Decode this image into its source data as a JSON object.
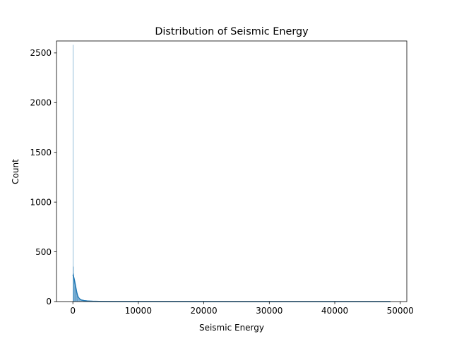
{
  "chart_data": {
    "type": "histogram",
    "title": "Distribution of Seismic Energy",
    "xlabel": "Seismic Energy",
    "ylabel": "Count",
    "xlim": [
      -2500,
      51000
    ],
    "ylim": [
      0,
      2620
    ],
    "x_ticks": [
      0,
      10000,
      20000,
      30000,
      40000,
      50000
    ],
    "y_ticks": [
      0,
      500,
      1000,
      1500,
      2000,
      2500
    ],
    "grid": false,
    "bar_color": "#1f77b4",
    "kde_color": "#1f77b4",
    "bins": [
      {
        "x0": 0,
        "x1": 40,
        "count": 2580
      },
      {
        "x0": 40,
        "x1": 80,
        "count": 350
      },
      {
        "x0": 80,
        "x1": 160,
        "count": 280
      },
      {
        "x0": 160,
        "x1": 240,
        "count": 240
      },
      {
        "x0": 240,
        "x1": 320,
        "count": 210
      },
      {
        "x0": 320,
        "x1": 400,
        "count": 180
      },
      {
        "x0": 400,
        "x1": 480,
        "count": 140
      },
      {
        "x0": 480,
        "x1": 560,
        "count": 105
      },
      {
        "x0": 560,
        "x1": 640,
        "count": 75
      },
      {
        "x0": 640,
        "x1": 720,
        "count": 55
      },
      {
        "x0": 720,
        "x1": 800,
        "count": 40
      },
      {
        "x0": 800,
        "x1": 960,
        "count": 28
      },
      {
        "x0": 960,
        "x1": 1200,
        "count": 18
      },
      {
        "x0": 1200,
        "x1": 1600,
        "count": 11
      },
      {
        "x0": 1600,
        "x1": 2200,
        "count": 7
      },
      {
        "x0": 2200,
        "x1": 3000,
        "count": 4
      },
      {
        "x0": 3000,
        "x1": 4500,
        "count": 2
      },
      {
        "x0": 4500,
        "x1": 7000,
        "count": 1
      },
      {
        "x0": 7000,
        "x1": 12000,
        "count": 1
      },
      {
        "x0": 12000,
        "x1": 48500,
        "count": 0
      }
    ],
    "kde": {
      "x": [
        0,
        50,
        100,
        150,
        200,
        300,
        400,
        500,
        600,
        700,
        800,
        1000,
        1300,
        1700,
        2200,
        3000,
        4000,
        6000,
        9000,
        15000,
        25000,
        35000,
        48500
      ],
      "y": [
        270,
        262,
        252,
        240,
        228,
        195,
        160,
        125,
        92,
        66,
        48,
        28,
        16,
        10,
        6,
        3.5,
        2,
        1.2,
        0.8,
        0.5,
        0.3,
        0.2,
        0.1
      ]
    }
  }
}
